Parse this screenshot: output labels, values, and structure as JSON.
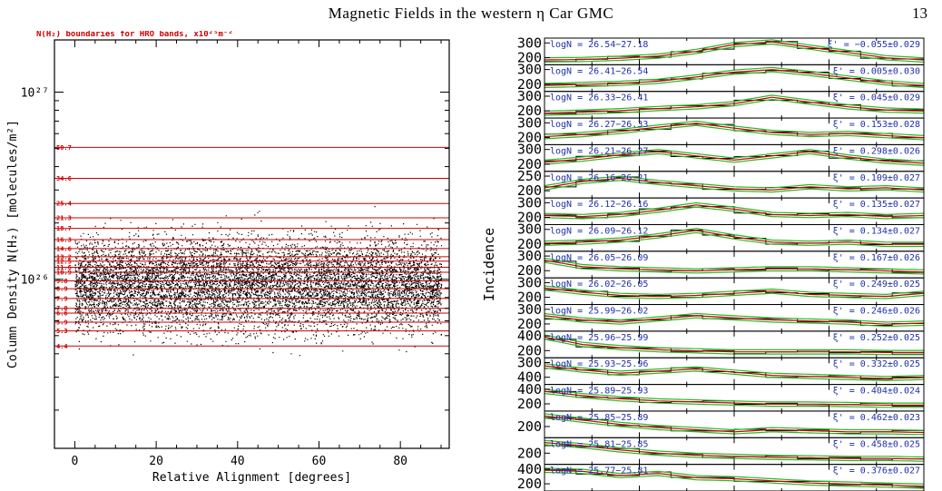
{
  "header": {
    "title": "Magnetic Fields in the western η Car GMC",
    "page_number": "13"
  },
  "chart_data": [
    {
      "type": "scatter",
      "title": "N(H₂) boundaries for HRO bands, x10²⁵m⁻²",
      "xlabel": "Relative Alignment [degrees]",
      "ylabel": "Column Density N(H₂) [molecules/m²]",
      "yscale": "log",
      "xlim": [
        -5,
        92
      ],
      "ylim": [
        1.25e+25,
        1.9e+27
      ],
      "xticks": [
        0,
        20,
        40,
        60,
        80
      ],
      "xtick_labels": [
        "0",
        "20",
        "40",
        "60",
        "80"
      ],
      "yticks": [
        1e+26,
        1e+27
      ],
      "ytick_labels": [
        "10²⁶",
        "10²⁷"
      ],
      "boundary_lines": [
        50.7,
        34.6,
        25.4,
        21.3,
        18.7,
        16.3,
        14.6,
        13.2,
        12.5,
        11.6,
        10.9,
        9.8,
        8.9,
        7.9,
        7.0,
        6.6,
        5.9,
        5.3,
        4.4
      ],
      "boundary_labels": [
        "50.7",
        "34.6",
        "25.4",
        "21.3",
        "18.7",
        "16.3",
        "14.6",
        "13.2",
        "12.5",
        "11.6",
        "10.9",
        "9.8",
        "8.9",
        "7.9",
        "7.0",
        "6.6",
        "5.9",
        "5.3",
        "4.4"
      ],
      "colors": {
        "boundary": "#cc0000",
        "points": "#000000"
      }
    },
    {
      "type": "line",
      "ylabel": "Incidence",
      "panels": [
        {
          "label": "logN = 26.54−27.18",
          "xi": "ξ' = −0.055±0.029",
          "yticks": [
            "300",
            "200"
          ]
        },
        {
          "label": "logN = 26.41−26.54",
          "xi": "ξ' = 0.005±0.030",
          "yticks": [
            "300",
            "200"
          ]
        },
        {
          "label": "logN = 26.33−26.41",
          "xi": "ξ' = 0.045±0.029",
          "yticks": [
            "300",
            "200"
          ]
        },
        {
          "label": "logN = 26.27−26.33",
          "xi": "ξ' = 0.153±0.028",
          "yticks": [
            "300",
            "200"
          ]
        },
        {
          "label": "logN = 26.21−26.27",
          "xi": "ξ' = 0.298±0.026",
          "yticks": [
            "300",
            "200"
          ]
        },
        {
          "label": "logN = 26.16−26.21",
          "xi": "ξ' = 0.109±0.027",
          "yticks": [
            "250",
            "200"
          ]
        },
        {
          "label": "logN = 26.12−26.16",
          "xi": "ξ' = 0.135±0.027",
          "yticks": [
            "300",
            "200"
          ]
        },
        {
          "label": "logN = 26.09−26.12",
          "xi": "ξ' = 0.134±0.027",
          "yticks": [
            "300",
            "200"
          ]
        },
        {
          "label": "logN = 26.05−26.09",
          "xi": "ξ' = 0.167±0.026",
          "yticks": [
            "300",
            "200"
          ]
        },
        {
          "label": "logN = 26.02−26.05",
          "xi": "ξ' = 0.249±0.025",
          "yticks": [
            "300",
            "200"
          ]
        },
        {
          "label": "logN = 25.99−26.02",
          "xi": "ξ' = 0.246±0.026",
          "yticks": [
            "300",
            "200"
          ]
        },
        {
          "label": "logN = 25.96−25.99",
          "xi": "ξ' = 0.252±0.025",
          "yticks": [
            "400",
            "200"
          ]
        },
        {
          "label": "logN = 25.93−25.96",
          "xi": "ξ' = 0.332±0.025",
          "yticks": [
            "300",
            "400"
          ]
        },
        {
          "label": "logN = 25.89−25.93",
          "xi": "ξ' = 0.404±0.024",
          "yticks": [
            "400",
            "200"
          ]
        },
        {
          "label": "logN = 25.85−25.89",
          "xi": "ξ' = 0.462±0.023",
          "yticks": [
            "200"
          ]
        },
        {
          "label": "logN = 25.81−25.85",
          "xi": "ξ' = 0.458±0.025",
          "yticks": [
            "200"
          ]
        },
        {
          "label": "logN = 25.77−25.81",
          "xi": "ξ' = 0.376±0.027",
          "yticks": [
            "400",
            "200"
          ]
        }
      ],
      "colors": {
        "label_text": "#1f2fae",
        "histogram": "#000000",
        "fit": "#cc0000",
        "envelope": "#22bb22"
      }
    }
  ]
}
